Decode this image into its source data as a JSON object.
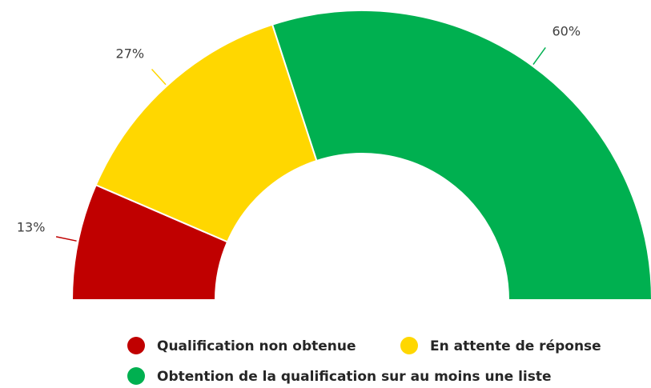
{
  "chart_data": {
    "type": "pie",
    "categories": [
      "Qualification non obtenue",
      "En attente de réponse",
      "Obtention de la qualification sur au moins une liste"
    ],
    "values": [
      13,
      27,
      60
    ],
    "value_labels": [
      "13%",
      "27%",
      "60%"
    ],
    "colors": [
      "#c00000",
      "#ffd700",
      "#00b050"
    ]
  }
}
